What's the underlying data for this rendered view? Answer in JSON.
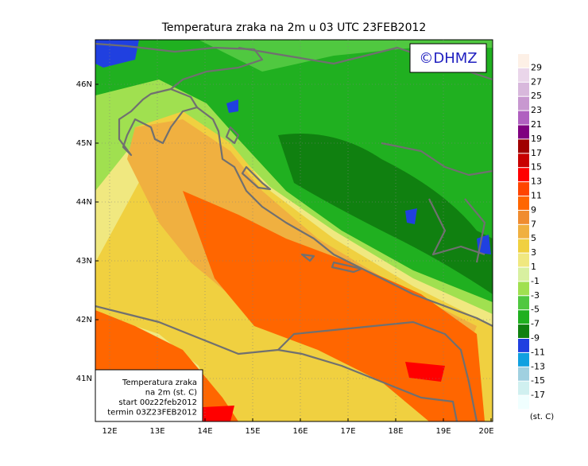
{
  "title": "Temperatura zraka na 2m u 03 UTC 23FEB2012",
  "logo": "©DHMZ",
  "lat_labels": [
    "46N",
    "45N",
    "44N",
    "43N",
    "42N",
    "41N"
  ],
  "lon_labels": [
    "12E",
    "13E",
    "14E",
    "15E",
    "16E",
    "17E",
    "18E",
    "19E",
    "20E"
  ],
  "colorbar": {
    "labels": [
      29,
      27,
      25,
      23,
      21,
      19,
      17,
      15,
      13,
      11,
      9,
      7,
      5,
      3,
      1,
      -1,
      -3,
      -5,
      -7,
      -9,
      -11,
      -13,
      -15,
      -17
    ],
    "colors": [
      "#fdf0e6",
      "#ead6ea",
      "#d8b8dc",
      "#c898d0",
      "#b060c0",
      "#800080",
      "#a00000",
      "#c80000",
      "#ff0000",
      "#ff4500",
      "#ff6600",
      "#f08c30",
      "#f0b040",
      "#f0d040",
      "#f0e880",
      "#d8f0a0",
      "#a0e050",
      "#50c840",
      "#20b020",
      "#108010",
      "#2040e0",
      "#10a0e0",
      "#a0d0e0",
      "#d0f0f0",
      "#f0ffff"
    ],
    "unit": "(st. C)"
  },
  "info_box": [
    "Temperatura zraka",
    "na 2m (st. C)",
    "start 00z22feb2012",
    "termin 03Z23FEB2012"
  ]
}
